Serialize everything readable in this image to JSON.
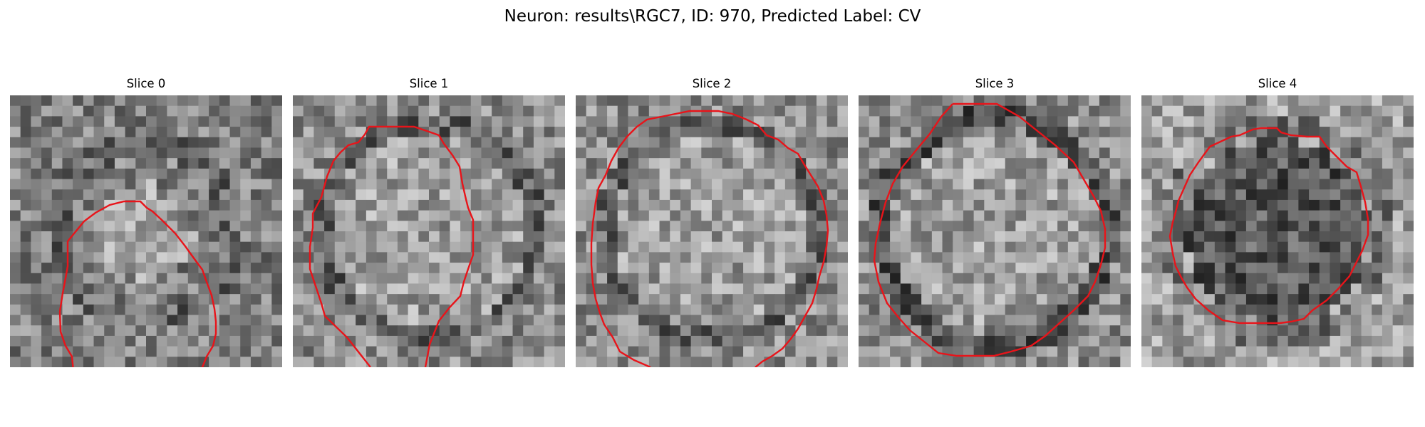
{
  "figure": {
    "title": "Neuron: results\\RGC7, ID: 970, Predicted Label: CV"
  },
  "panels": [
    {
      "title": "Slice 0",
      "seed": 11,
      "contour_color": "#e8141a",
      "interior": "light-center",
      "outline": "dark-ring-weak"
    },
    {
      "title": "Slice 1",
      "seed": 23,
      "contour_color": "#e8141a",
      "interior": "light",
      "outline": "dark-ring"
    },
    {
      "title": "Slice 2",
      "seed": 37,
      "contour_color": "#e8141a",
      "interior": "light",
      "outline": "dark-ring"
    },
    {
      "title": "Slice 3",
      "seed": 53,
      "contour_color": "#e8141a",
      "interior": "light",
      "outline": "dark-ring-strong"
    },
    {
      "title": "Slice 4",
      "seed": 71,
      "contour_color": "#e8141a",
      "interior": "dark",
      "outline": "dark-ring"
    }
  ],
  "colormap": "gray",
  "contour_color": "#e8141a"
}
